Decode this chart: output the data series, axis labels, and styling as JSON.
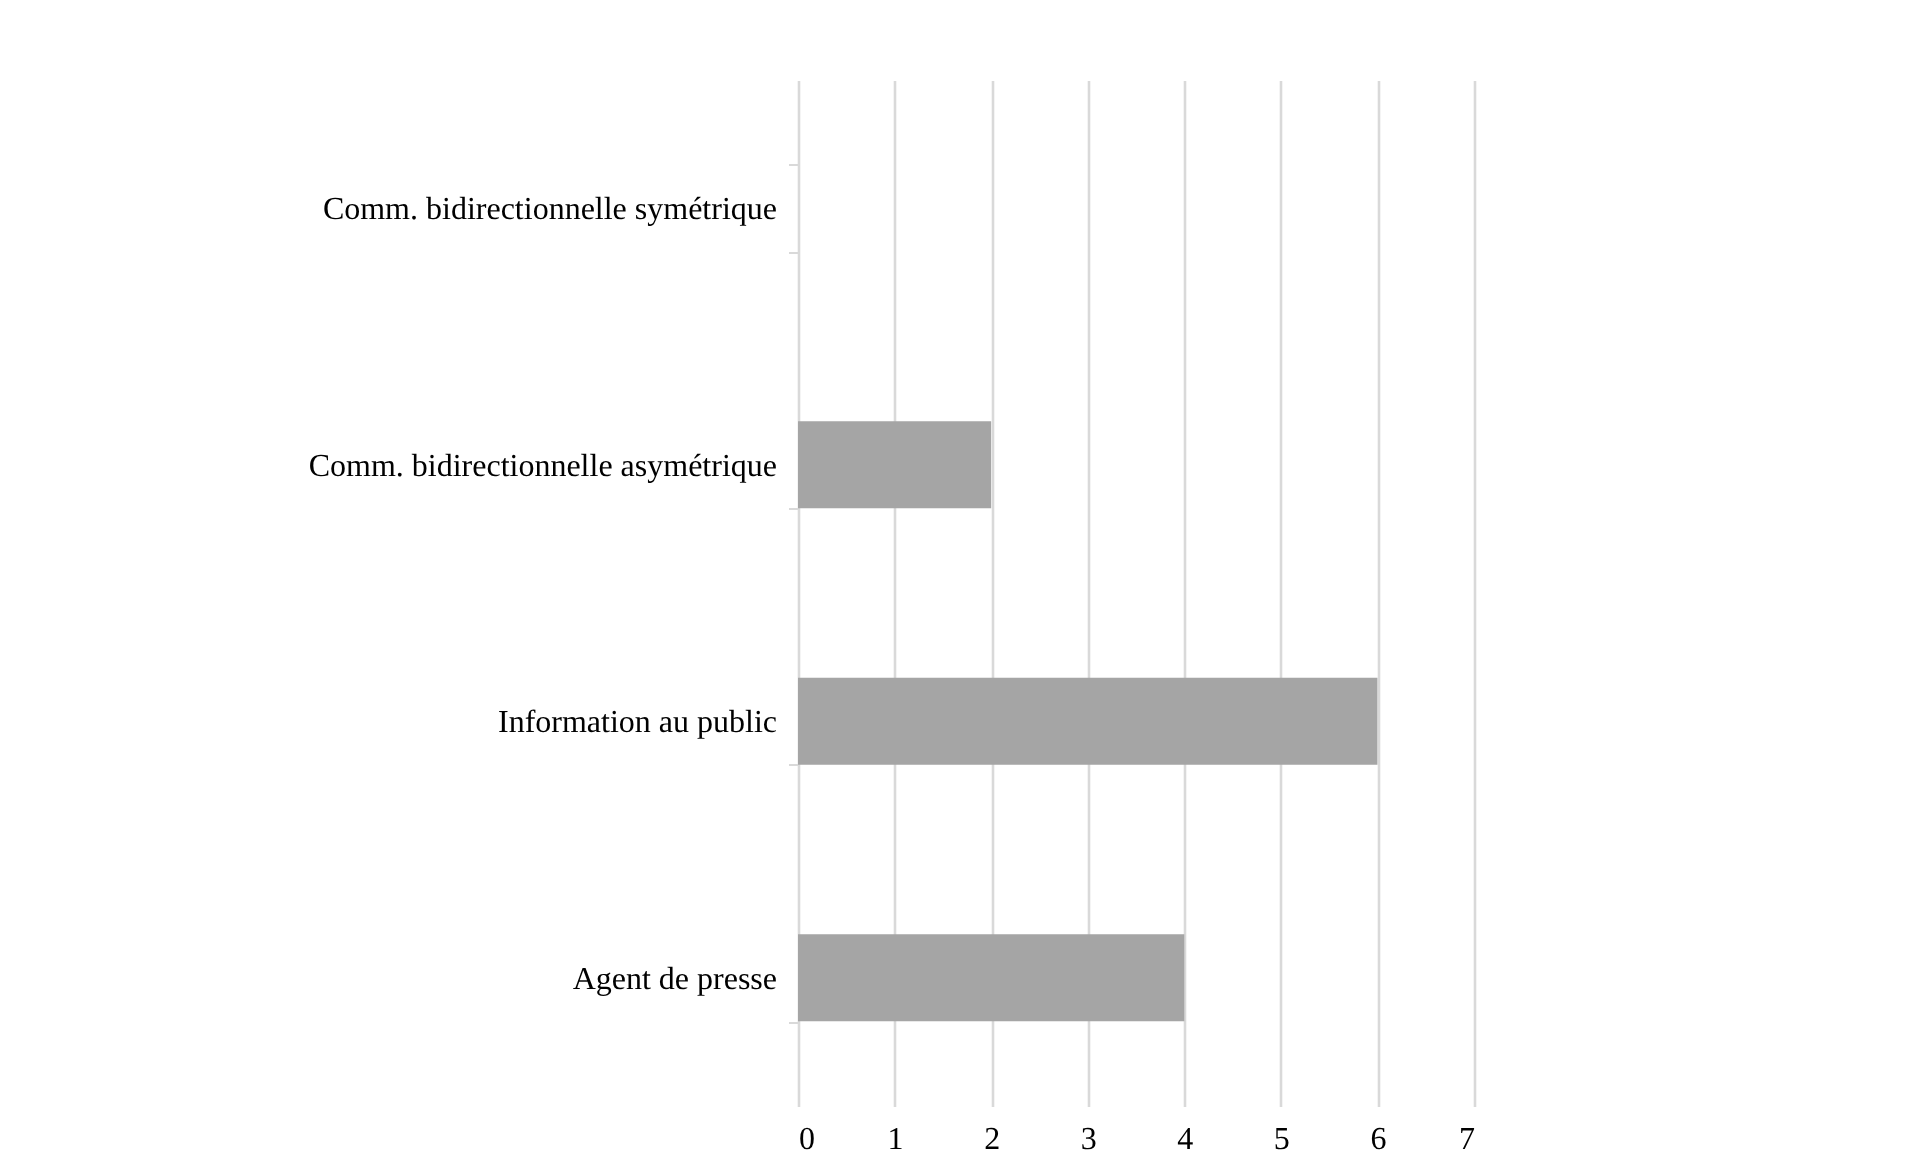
{
  "chart_data": {
    "type": "bar",
    "orientation": "horizontal",
    "categories": [
      "Comm. bidirectionnelle symétrique",
      "Comm. bidirectionnelle asymétrique",
      "Information au public",
      "Agent de presse"
    ],
    "values": [
      0,
      2,
      6,
      4
    ],
    "color": "#a5a5a5",
    "xlim": [
      0,
      7
    ],
    "xticks": [
      0,
      1,
      2,
      3,
      4,
      5,
      6,
      7
    ],
    "grid": "x"
  }
}
